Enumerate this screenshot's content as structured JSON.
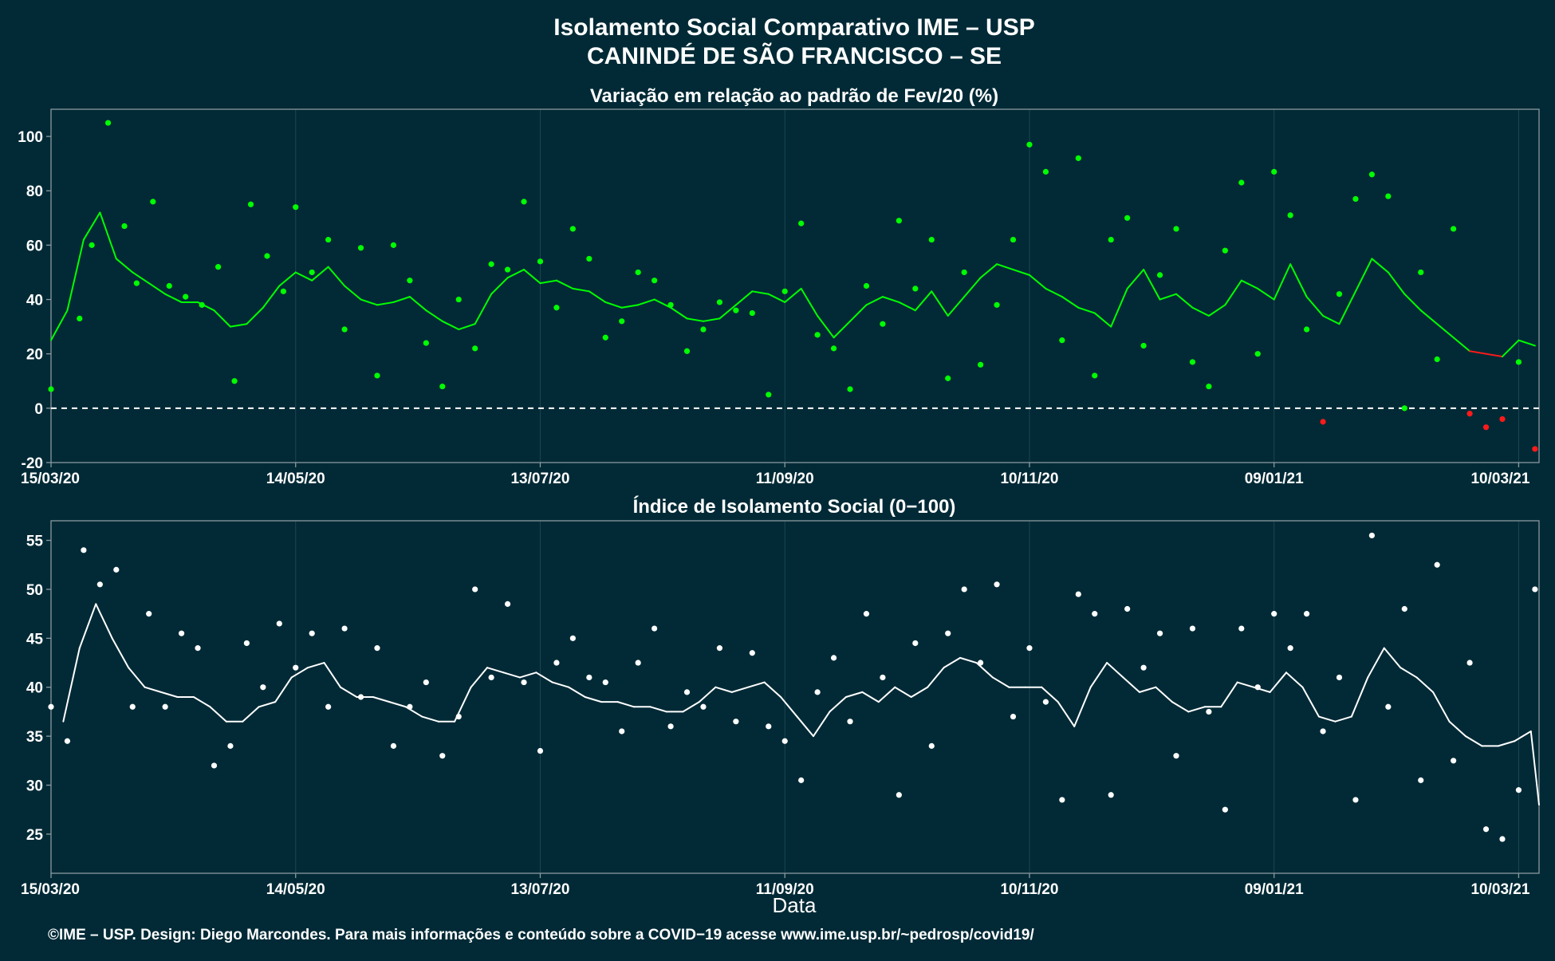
{
  "colors": {
    "background": "#012a36",
    "panel_border": "#8a9aa0",
    "gridline": "#1d4452",
    "positive_series": "#00ff00",
    "negative_series": "#ff1a1a",
    "index_series": "#ffffff",
    "text": "#ffffff"
  },
  "header": {
    "title_line1": "Isolamento Social Comparativo IME – USP",
    "title_line2": "CANINDÉ DE SÃO FRANCISCO – SE"
  },
  "footer": {
    "xlabel": "Data",
    "credit": "©IME – USP. Design: Diego Marcondes. Para mais informações e conteúdo sobre a COVID−19 acesse www.ime.usp.br/~pedrosp/covid19/"
  },
  "chart_data": [
    {
      "type": "scatter",
      "title": "Variação em relação ao padrão de Fev/20 (%)",
      "xlabel": "",
      "ylabel": "",
      "x_range": [
        "2020-03-15",
        "2021-03-15"
      ],
      "x_ticks": [
        "15/03/20",
        "14/05/20",
        "13/07/20",
        "11/09/20",
        "10/11/20",
        "09/01/21",
        "10/03/21"
      ],
      "ylim": [
        -20,
        110
      ],
      "y_ticks": [
        -20,
        0,
        20,
        40,
        60,
        80,
        100
      ],
      "reference_line": 0,
      "grid": true,
      "point_color_rule": "green when value >= 0, red when value < 0",
      "series": [
        {
          "kind": "daily points",
          "x": [
            "2020-03-15",
            "2020-03-22",
            "2020-03-25",
            "2020-03-29",
            "2020-04-02",
            "2020-04-05",
            "2020-04-09",
            "2020-04-13",
            "2020-04-17",
            "2020-04-21",
            "2020-04-25",
            "2020-04-29",
            "2020-05-03",
            "2020-05-07",
            "2020-05-11",
            "2020-05-14",
            "2020-05-18",
            "2020-05-22",
            "2020-05-26",
            "2020-05-30",
            "2020-06-03",
            "2020-06-07",
            "2020-06-11",
            "2020-06-15",
            "2020-06-19",
            "2020-06-23",
            "2020-06-27",
            "2020-07-01",
            "2020-07-05",
            "2020-07-09",
            "2020-07-13",
            "2020-07-17",
            "2020-07-21",
            "2020-07-25",
            "2020-07-29",
            "2020-08-02",
            "2020-08-06",
            "2020-08-10",
            "2020-08-14",
            "2020-08-18",
            "2020-08-22",
            "2020-08-26",
            "2020-08-30",
            "2020-09-03",
            "2020-09-07",
            "2020-09-11",
            "2020-09-15",
            "2020-09-19",
            "2020-09-23",
            "2020-09-27",
            "2020-10-01",
            "2020-10-05",
            "2020-10-09",
            "2020-10-13",
            "2020-10-17",
            "2020-10-21",
            "2020-10-25",
            "2020-10-29",
            "2020-11-02",
            "2020-11-06",
            "2020-11-10",
            "2020-11-14",
            "2020-11-18",
            "2020-11-22",
            "2020-11-26",
            "2020-11-30",
            "2020-12-04",
            "2020-12-08",
            "2020-12-12",
            "2020-12-16",
            "2020-12-20",
            "2020-12-24",
            "2020-12-28",
            "2021-01-01",
            "2021-01-05",
            "2021-01-09",
            "2021-01-13",
            "2021-01-17",
            "2021-01-21",
            "2021-01-25",
            "2021-01-29",
            "2021-02-02",
            "2021-02-06",
            "2021-02-10",
            "2021-02-14",
            "2021-02-18",
            "2021-02-22",
            "2021-02-26",
            "2021-03-02",
            "2021-03-06",
            "2021-03-10",
            "2021-03-14"
          ],
          "values": [
            7,
            33,
            60,
            105,
            67,
            46,
            76,
            45,
            41,
            38,
            52,
            10,
            75,
            56,
            43,
            74,
            50,
            62,
            29,
            59,
            12,
            60,
            47,
            24,
            8,
            40,
            22,
            53,
            51,
            76,
            54,
            37,
            66,
            55,
            26,
            32,
            50,
            47,
            38,
            21,
            29,
            39,
            36,
            35,
            5,
            43,
            68,
            27,
            22,
            7,
            45,
            31,
            69,
            44,
            62,
            11,
            50,
            16,
            38,
            62,
            97,
            87,
            25,
            92,
            12,
            62,
            70,
            23,
            49,
            66,
            17,
            8,
            58,
            83,
            20,
            87,
            71,
            29,
            -5,
            42,
            77,
            86,
            78,
            0,
            50,
            18,
            66,
            -2,
            -7,
            -4,
            17,
            -15
          ]
        },
        {
          "kind": "moving average line",
          "x": [
            "2020-03-15",
            "2020-03-19",
            "2020-03-23",
            "2020-03-27",
            "2020-03-31",
            "2020-04-04",
            "2020-04-08",
            "2020-04-12",
            "2020-04-16",
            "2020-04-20",
            "2020-04-24",
            "2020-04-28",
            "2020-05-02",
            "2020-05-06",
            "2020-05-10",
            "2020-05-14",
            "2020-05-18",
            "2020-05-22",
            "2020-05-26",
            "2020-05-30",
            "2020-06-03",
            "2020-06-07",
            "2020-06-11",
            "2020-06-15",
            "2020-06-19",
            "2020-06-23",
            "2020-06-27",
            "2020-07-01",
            "2020-07-05",
            "2020-07-09",
            "2020-07-13",
            "2020-07-17",
            "2020-07-21",
            "2020-07-25",
            "2020-07-29",
            "2020-08-02",
            "2020-08-06",
            "2020-08-10",
            "2020-08-14",
            "2020-08-18",
            "2020-08-22",
            "2020-08-26",
            "2020-08-30",
            "2020-09-03",
            "2020-09-07",
            "2020-09-11",
            "2020-09-15",
            "2020-09-19",
            "2020-09-23",
            "2020-09-27",
            "2020-10-01",
            "2020-10-05",
            "2020-10-09",
            "2020-10-13",
            "2020-10-17",
            "2020-10-21",
            "2020-10-25",
            "2020-10-29",
            "2020-11-02",
            "2020-11-06",
            "2020-11-10",
            "2020-11-14",
            "2020-11-18",
            "2020-11-22",
            "2020-11-26",
            "2020-11-30",
            "2020-12-04",
            "2020-12-08",
            "2020-12-12",
            "2020-12-16",
            "2020-12-20",
            "2020-12-24",
            "2020-12-28",
            "2021-01-01",
            "2021-01-05",
            "2021-01-09",
            "2021-01-13",
            "2021-01-17",
            "2021-01-21",
            "2021-01-25",
            "2021-01-29",
            "2021-02-02",
            "2021-02-06",
            "2021-02-10",
            "2021-02-14",
            "2021-02-18",
            "2021-02-22",
            "2021-02-26",
            "2021-03-02",
            "2021-03-06",
            "2021-03-10",
            "2021-03-14"
          ],
          "values": [
            25,
            36,
            62,
            72,
            55,
            50,
            46,
            42,
            39,
            39,
            36,
            30,
            31,
            37,
            45,
            50,
            47,
            52,
            45,
            40,
            38,
            39,
            41,
            36,
            32,
            29,
            31,
            42,
            48,
            51,
            46,
            47,
            44,
            43,
            39,
            37,
            38,
            40,
            37,
            33,
            32,
            33,
            38,
            43,
            42,
            39,
            44,
            34,
            26,
            32,
            38,
            41,
            39,
            36,
            43,
            34,
            41,
            48,
            53,
            51,
            49,
            44,
            41,
            37,
            35,
            30,
            44,
            51,
            40,
            42,
            37,
            34,
            38,
            47,
            44,
            40,
            53,
            41,
            34,
            31,
            43,
            55,
            50,
            42,
            36,
            31,
            26,
            21,
            20,
            19,
            25,
            23
          ]
        }
      ]
    },
    {
      "type": "scatter",
      "title": "Índice de Isolamento Social (0−100)",
      "xlabel": "Data",
      "ylabel": "",
      "x_range": [
        "2020-03-15",
        "2021-03-15"
      ],
      "x_ticks": [
        "15/03/20",
        "14/05/20",
        "13/07/20",
        "11/09/20",
        "10/11/20",
        "09/01/21",
        "10/03/21"
      ],
      "ylim": [
        21,
        57
      ],
      "y_ticks": [
        25,
        30,
        35,
        40,
        45,
        50,
        55
      ],
      "grid": true,
      "series": [
        {
          "kind": "daily points",
          "x": [
            "2020-03-15",
            "2020-03-19",
            "2020-03-23",
            "2020-03-27",
            "2020-03-31",
            "2020-04-04",
            "2020-04-08",
            "2020-04-12",
            "2020-04-16",
            "2020-04-20",
            "2020-04-24",
            "2020-04-28",
            "2020-05-02",
            "2020-05-06",
            "2020-05-10",
            "2020-05-14",
            "2020-05-18",
            "2020-05-22",
            "2020-05-26",
            "2020-05-30",
            "2020-06-03",
            "2020-06-07",
            "2020-06-11",
            "2020-06-15",
            "2020-06-19",
            "2020-06-23",
            "2020-06-27",
            "2020-07-01",
            "2020-07-05",
            "2020-07-09",
            "2020-07-13",
            "2020-07-17",
            "2020-07-21",
            "2020-07-25",
            "2020-07-29",
            "2020-08-02",
            "2020-08-06",
            "2020-08-10",
            "2020-08-14",
            "2020-08-18",
            "2020-08-22",
            "2020-08-26",
            "2020-08-30",
            "2020-09-03",
            "2020-09-07",
            "2020-09-11",
            "2020-09-15",
            "2020-09-19",
            "2020-09-23",
            "2020-09-27",
            "2020-10-01",
            "2020-10-05",
            "2020-10-09",
            "2020-10-13",
            "2020-10-17",
            "2020-10-21",
            "2020-10-25",
            "2020-10-29",
            "2020-11-02",
            "2020-11-06",
            "2020-11-10",
            "2020-11-14",
            "2020-11-18",
            "2020-11-22",
            "2020-11-26",
            "2020-11-30",
            "2020-12-04",
            "2020-12-08",
            "2020-12-12",
            "2020-12-16",
            "2020-12-20",
            "2020-12-24",
            "2020-12-28",
            "2021-01-01",
            "2021-01-05",
            "2021-01-09",
            "2021-01-13",
            "2021-01-17",
            "2021-01-21",
            "2021-01-25",
            "2021-01-29",
            "2021-02-02",
            "2021-02-06",
            "2021-02-10",
            "2021-02-14",
            "2021-02-18",
            "2021-02-22",
            "2021-02-26",
            "2021-03-02",
            "2021-03-06",
            "2021-03-10",
            "2021-03-14"
          ],
          "values": [
            38,
            34.5,
            54,
            50.5,
            52,
            38,
            47.5,
            38,
            45.5,
            44,
            32,
            34,
            44.5,
            40,
            46.5,
            42,
            45.5,
            38,
            46,
            39,
            44,
            34,
            38,
            40.5,
            33,
            37,
            50,
            41,
            48.5,
            40.5,
            33.5,
            42.5,
            45,
            41,
            40.5,
            35.5,
            42.5,
            46,
            36,
            39.5,
            38,
            44,
            36.5,
            43.5,
            36,
            34.5,
            30.5,
            39.5,
            43,
            36.5,
            47.5,
            41,
            29,
            44.5,
            34,
            45.5,
            50,
            42.5,
            50.5,
            37,
            44,
            38.5,
            28.5,
            49.5,
            47.5,
            29,
            48,
            42,
            45.5,
            33,
            46,
            37.5,
            27.5,
            46,
            40,
            47.5,
            44,
            47.5,
            35.5,
            41,
            28.5,
            55.5,
            38,
            48,
            30.5,
            52.5,
            32.5,
            42.5,
            25.5,
            24.5,
            29.5,
            50
          ]
        },
        {
          "kind": "moving average line",
          "x": [
            "2020-03-18",
            "2020-03-22",
            "2020-03-26",
            "2020-03-30",
            "2020-04-03",
            "2020-04-07",
            "2020-04-11",
            "2020-04-15",
            "2020-04-19",
            "2020-04-23",
            "2020-04-27",
            "2020-05-01",
            "2020-05-05",
            "2020-05-09",
            "2020-05-13",
            "2020-05-17",
            "2020-05-21",
            "2020-05-25",
            "2020-05-29",
            "2020-06-02",
            "2020-06-06",
            "2020-06-10",
            "2020-06-14",
            "2020-06-18",
            "2020-06-22",
            "2020-06-26",
            "2020-06-30",
            "2020-07-04",
            "2020-07-08",
            "2020-07-12",
            "2020-07-16",
            "2020-07-20",
            "2020-07-24",
            "2020-07-28",
            "2020-08-01",
            "2020-08-05",
            "2020-08-09",
            "2020-08-13",
            "2020-08-17",
            "2020-08-21",
            "2020-08-25",
            "2020-08-29",
            "2020-09-02",
            "2020-09-06",
            "2020-09-10",
            "2020-09-14",
            "2020-09-18",
            "2020-09-22",
            "2020-09-26",
            "2020-09-30",
            "2020-10-04",
            "2020-10-08",
            "2020-10-12",
            "2020-10-16",
            "2020-10-20",
            "2020-10-24",
            "2020-10-28",
            "2020-11-01",
            "2020-11-05",
            "2020-11-09",
            "2020-11-13",
            "2020-11-17",
            "2020-11-21",
            "2020-11-25",
            "2020-11-29",
            "2020-12-03",
            "2020-12-07",
            "2020-12-11",
            "2020-12-15",
            "2020-12-19",
            "2020-12-23",
            "2020-12-27",
            "2020-12-31",
            "2021-01-04",
            "2021-01-08",
            "2021-01-12",
            "2021-01-16",
            "2021-01-20",
            "2021-01-24",
            "2021-01-28",
            "2021-02-01",
            "2021-02-05",
            "2021-02-09",
            "2021-02-13",
            "2021-02-17",
            "2021-02-21",
            "2021-02-25",
            "2021-03-01",
            "2021-03-05",
            "2021-03-09",
            "2021-03-13",
            "2021-03-15"
          ],
          "values": [
            36.5,
            44,
            48.5,
            45,
            42,
            40,
            39.5,
            39,
            39,
            38,
            36.5,
            36.5,
            38,
            38.5,
            41,
            42,
            42.5,
            40,
            39,
            39,
            38.5,
            38,
            37,
            36.5,
            36.5,
            40,
            42,
            41.5,
            41,
            41.5,
            40.5,
            40,
            39,
            38.5,
            38.5,
            38,
            38,
            37.5,
            37.5,
            38.5,
            40,
            39.5,
            40,
            40.5,
            39,
            37,
            35,
            37.5,
            39,
            39.5,
            38.5,
            40,
            39,
            40,
            42,
            43,
            42.5,
            41,
            40,
            40,
            40,
            38.5,
            36,
            40,
            42.5,
            41,
            39.5,
            40,
            38.5,
            37.5,
            38,
            38,
            40.5,
            40,
            39.5,
            41.5,
            40,
            37,
            36.5,
            37,
            41,
            44,
            42,
            41,
            39.5,
            36.5,
            35,
            34,
            34,
            34.5,
            35.5,
            28
          ]
        }
      ]
    }
  ]
}
